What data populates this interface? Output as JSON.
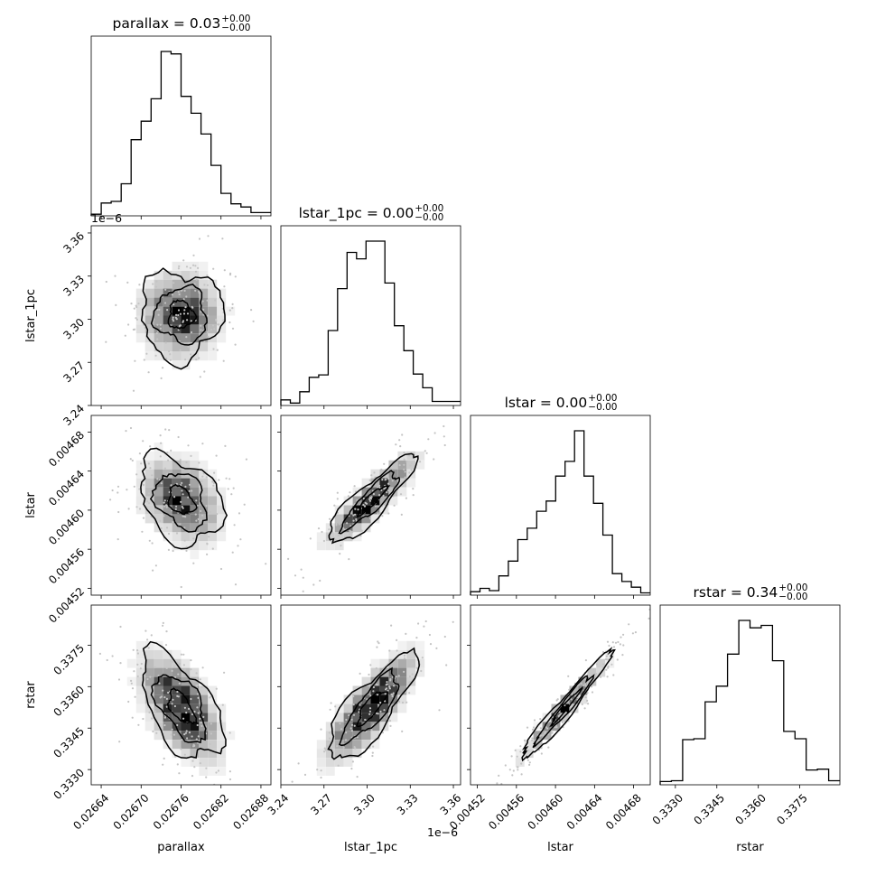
{
  "chart_data": {
    "type": "corner",
    "parameters": [
      "parallax",
      "lstar_1pc",
      "lstar",
      "rstar"
    ],
    "titles": [
      {
        "param": "parallax",
        "prefix": "parallax = ",
        "value": "0.03",
        "plus": "+0.00",
        "minus": "−0.00"
      },
      {
        "param": "lstar_1pc",
        "prefix": "lstar_1pc = ",
        "value": "0.00",
        "plus": "+0.00",
        "minus": "−0.00"
      },
      {
        "param": "lstar",
        "prefix": "lstar = ",
        "value": "0.00",
        "plus": "+0.00",
        "minus": "−0.00"
      },
      {
        "param": "rstar",
        "prefix": "rstar = ",
        "value": "0.34",
        "plus": "+0.00",
        "minus": "−0.00"
      }
    ],
    "axis_labels": [
      "parallax",
      "lstar_1pc",
      "lstar",
      "rstar"
    ],
    "ranges": [
      [
        0.026625,
        0.026895
      ],
      [
        3.24,
        3.365
      ],
      [
        0.004513,
        0.004697
      ],
      [
        0.33245,
        0.33895
      ]
    ],
    "ticks": [
      {
        "values": [
          0.02664,
          0.0267,
          0.02676,
          0.02682,
          0.02688
        ],
        "labels": [
          "0.02664",
          "0.02670",
          "0.02676",
          "0.02682",
          "0.02688"
        ]
      },
      {
        "values": [
          3.24,
          3.27,
          3.3,
          3.33,
          3.36
        ],
        "labels": [
          "3.24",
          "3.27",
          "3.30",
          "3.33",
          "3.36"
        ]
      },
      {
        "values": [
          0.00452,
          0.00456,
          0.0046,
          0.00464,
          0.00468
        ],
        "labels": [
          "0.00452",
          "0.00456",
          "0.00460",
          "0.00464",
          "0.00468"
        ]
      },
      {
        "values": [
          0.333,
          0.3345,
          0.336,
          0.3375
        ],
        "labels": [
          "0.3330",
          "0.3345",
          "0.3360",
          "0.3375"
        ]
      }
    ],
    "offset_text": {
      "lstar_1pc": "1e−6"
    },
    "histograms": [
      {
        "param": "parallax",
        "counts": [
          2,
          16,
          18,
          40,
          95,
          118,
          146,
          205,
          202,
          149,
          128,
          102,
          63,
          28,
          15,
          11,
          4,
          4
        ]
      },
      {
        "param": "lstar_1pc",
        "counts": [
          7,
          3,
          17,
          35,
          38,
          93,
          145,
          190,
          182,
          204,
          204,
          152,
          99,
          68,
          39,
          22,
          5,
          5,
          5
        ]
      },
      {
        "param": "lstar",
        "counts": [
          3,
          6,
          4,
          17,
          30,
          49,
          59,
          74,
          83,
          105,
          118,
          145,
          105,
          81,
          53,
          19,
          12,
          7,
          2
        ]
      },
      {
        "param": "rstar",
        "counts": [
          4,
          5,
          55,
          56,
          101,
          120,
          159,
          200,
          191,
          194,
          151,
          65,
          56,
          18,
          19,
          5
        ]
      }
    ],
    "pairs": [
      {
        "x": "parallax",
        "y": "lstar_1pc",
        "correlation": 0.0
      },
      {
        "x": "parallax",
        "y": "lstar",
        "correlation": -0.3
      },
      {
        "x": "lstar_1pc",
        "y": "lstar",
        "correlation": 0.88
      },
      {
        "x": "parallax",
        "y": "rstar",
        "correlation": -0.55
      },
      {
        "x": "lstar_1pc",
        "y": "rstar",
        "correlation": 0.8
      },
      {
        "x": "lstar",
        "y": "rstar",
        "correlation": 0.97
      }
    ],
    "center": [
      0.02676,
      3.303,
      0.00461,
      0.33525
    ],
    "sigma": [
      3.5e-05,
      0.0175,
      2.6e-05,
      0.0011
    ]
  }
}
